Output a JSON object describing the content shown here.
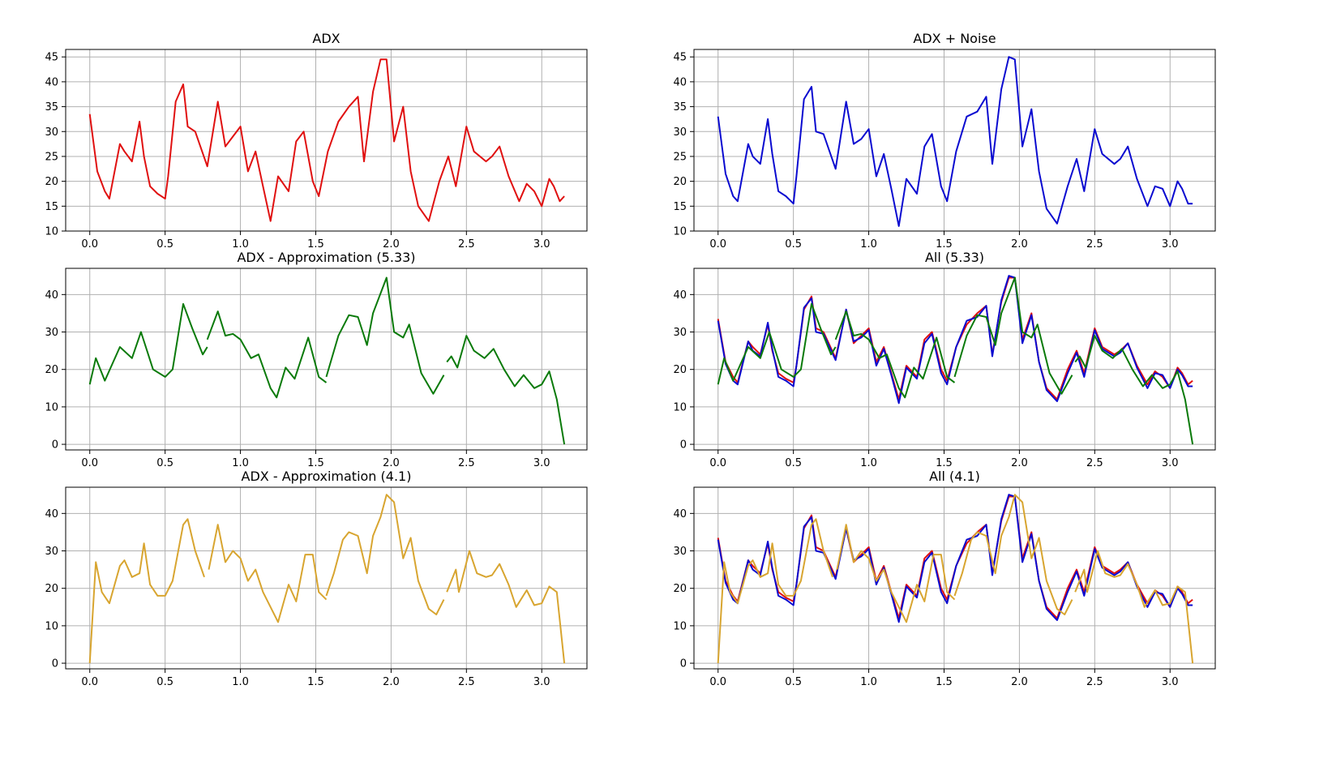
{
  "colors": {
    "adx": "#e01010",
    "noise": "#0a0ad0",
    "approx": "#0a7a0a",
    "approx41": "#d8a530",
    "grid": "#b0b0b0",
    "frame": "#000000"
  },
  "chart_data": [
    {
      "type": "line",
      "title": "ADX",
      "xlim": [
        -0.16,
        3.3
      ],
      "ylim": [
        10,
        46.5
      ],
      "xticks": [
        0.0,
        0.5,
        1.0,
        1.5,
        2.0,
        2.5,
        3.0
      ],
      "xtick_labels": [
        "0.0",
        "0.5",
        "1.0",
        "1.5",
        "2.0",
        "2.5",
        "3.0"
      ],
      "yticks": [
        10,
        15,
        20,
        25,
        30,
        35,
        40,
        45
      ],
      "ytick_labels": [
        "10",
        "15",
        "20",
        "25",
        "30",
        "35",
        "40",
        "45"
      ],
      "grid": true,
      "series": [
        {
          "color_key": "adx",
          "x": [
            0.0,
            0.05,
            0.1,
            0.13,
            0.2,
            0.23,
            0.28,
            0.33,
            0.36,
            0.4,
            0.45,
            0.5,
            0.52,
            0.57,
            0.62,
            0.65,
            0.7,
            0.78,
            0.85,
            0.9,
            0.95,
            1.0,
            1.05,
            1.1,
            1.15,
            1.2,
            1.25,
            1.32,
            1.37,
            1.42,
            1.48,
            1.52,
            1.58,
            1.65,
            1.72,
            1.78,
            1.82,
            1.88,
            1.93,
            1.97,
            2.02,
            2.08,
            2.13,
            2.18,
            2.25,
            2.32,
            2.38,
            2.43,
            2.5,
            2.55,
            2.63,
            2.67,
            2.72,
            2.78,
            2.85,
            2.9,
            2.95,
            3.0,
            3.05,
            3.08,
            3.12,
            3.15
          ],
          "y": [
            33.5,
            22,
            18,
            16.5,
            27.5,
            26,
            24,
            32,
            25,
            19,
            17.5,
            16.5,
            21,
            36,
            39.5,
            31,
            30,
            23,
            36,
            27,
            29,
            31,
            22,
            26,
            19,
            12,
            21,
            18,
            28,
            30,
            20,
            17,
            26,
            32,
            35,
            37,
            24,
            38,
            44.5,
            44.5,
            28,
            35,
            22,
            15,
            12,
            20,
            25,
            19,
            31,
            26,
            24,
            25,
            27,
            21,
            16,
            19.5,
            18,
            15,
            20.5,
            19,
            16,
            17
          ]
        }
      ]
    },
    {
      "type": "line",
      "title": "ADX + Noise",
      "xlim": [
        -0.16,
        3.3
      ],
      "ylim": [
        10,
        46.5
      ],
      "xticks": [
        0.0,
        0.5,
        1.0,
        1.5,
        2.0,
        2.5,
        3.0
      ],
      "xtick_labels": [
        "0.0",
        "0.5",
        "1.0",
        "1.5",
        "2.0",
        "2.5",
        "3.0"
      ],
      "yticks": [
        10,
        15,
        20,
        25,
        30,
        35,
        40,
        45
      ],
      "ytick_labels": [
        "10",
        "15",
        "20",
        "25",
        "30",
        "35",
        "40",
        "45"
      ],
      "grid": true,
      "series": [
        {
          "color_key": "noise",
          "x": [
            0.0,
            0.05,
            0.1,
            0.13,
            0.2,
            0.23,
            0.28,
            0.33,
            0.36,
            0.4,
            0.45,
            0.5,
            0.52,
            0.57,
            0.62,
            0.65,
            0.7,
            0.78,
            0.85,
            0.9,
            0.95,
            1.0,
            1.05,
            1.1,
            1.15,
            1.2,
            1.25,
            1.32,
            1.37,
            1.42,
            1.48,
            1.52,
            1.58,
            1.65,
            1.72,
            1.78,
            1.82,
            1.88,
            1.93,
            1.97,
            2.02,
            2.08,
            2.13,
            2.18,
            2.25,
            2.32,
            2.38,
            2.43,
            2.5,
            2.55,
            2.63,
            2.67,
            2.72,
            2.78,
            2.85,
            2.9,
            2.95,
            3.0,
            3.05,
            3.08,
            3.12,
            3.15
          ],
          "y": [
            33,
            21.5,
            17,
            16,
            27.5,
            25,
            23.5,
            32.5,
            25.5,
            18,
            17,
            15.5,
            21,
            36.5,
            39,
            30,
            29.5,
            22.5,
            36,
            27.5,
            28.5,
            30.5,
            21,
            25.5,
            18.5,
            11,
            20.5,
            17.5,
            27,
            29.5,
            19,
            16,
            26,
            33,
            34,
            37,
            23.5,
            38.5,
            45,
            44.5,
            27,
            34.5,
            22,
            14.5,
            11.5,
            19,
            24.5,
            18,
            30.5,
            25.5,
            23.5,
            24.5,
            27,
            20.5,
            15,
            19,
            18.5,
            15,
            20,
            18.5,
            15.5,
            15.5
          ]
        }
      ]
    },
    {
      "type": "line",
      "title": "ADX - Approximation (5.33)",
      "xlim": [
        -0.16,
        3.3
      ],
      "ylim": [
        -1.5,
        47
      ],
      "xticks": [
        0.0,
        0.5,
        1.0,
        1.5,
        2.0,
        2.5,
        3.0
      ],
      "xtick_labels": [
        "0.0",
        "0.5",
        "1.0",
        "1.5",
        "2.0",
        "2.5",
        "3.0"
      ],
      "yticks": [
        0,
        10,
        20,
        30,
        40
      ],
      "ytick_labels": [
        "0",
        "10",
        "20",
        "30",
        "40"
      ],
      "grid": true,
      "series": [
        {
          "color_key": "approx",
          "segments": [
            {
              "x": [
                0.0,
                0.04,
                0.1,
                0.2,
                0.28,
                0.34,
                0.42,
                0.5,
                0.55,
                0.62,
                0.68,
                0.75,
                0.78
              ],
              "y": [
                16,
                23,
                17,
                26,
                23,
                30,
                20,
                18,
                20,
                37.5,
                31,
                24,
                26
              ]
            },
            {
              "x": [
                0.78,
                0.85,
                0.9,
                0.95,
                1.0,
                1.07,
                1.12,
                1.2,
                1.24,
                1.3,
                1.36,
                1.45,
                1.52,
                1.57
              ],
              "y": [
                28,
                35.5,
                29,
                29.5,
                28,
                23,
                24,
                15,
                12.5,
                20.5,
                17.5,
                28.5,
                18,
                16.5
              ]
            },
            {
              "x": [
                1.57,
                1.65,
                1.72,
                1.78,
                1.84,
                1.88,
                1.97,
                2.02,
                2.08,
                2.12,
                2.2,
                2.28,
                2.35
              ],
              "y": [
                18,
                29,
                34.5,
                34,
                26.5,
                35,
                44.5,
                30,
                28.5,
                32,
                19,
                13.5,
                18.5
              ]
            },
            {
              "x": [
                2.37,
                2.4,
                2.44,
                2.5,
                2.55,
                2.62,
                2.68,
                2.75,
                2.82,
                2.88,
                2.95,
                3.0,
                3.05,
                3.1,
                3.15
              ],
              "y": [
                22,
                23.5,
                20.5,
                29,
                25,
                23,
                25.5,
                20,
                15.5,
                18.5,
                15,
                16,
                19.5,
                12,
                0
              ]
            }
          ]
        }
      ]
    },
    {
      "type": "line",
      "title": "All (5.33)",
      "xlim": [
        -0.16,
        3.3
      ],
      "ylim": [
        -1.5,
        47
      ],
      "xticks": [
        0.0,
        0.5,
        1.0,
        1.5,
        2.0,
        2.5,
        3.0
      ],
      "xtick_labels": [
        "0.0",
        "0.5",
        "1.0",
        "1.5",
        "2.0",
        "2.5",
        "3.0"
      ],
      "yticks": [
        0,
        10,
        20,
        30,
        40
      ],
      "ytick_labels": [
        "0",
        "10",
        "20",
        "30",
        "40"
      ],
      "grid": true,
      "series": [
        {
          "color_key": "adx",
          "ref": "adx"
        },
        {
          "color_key": "noise",
          "ref": "noise"
        },
        {
          "color_key": "approx",
          "ref": "approx533"
        }
      ]
    },
    {
      "type": "line",
      "title": "ADX - Approximation (4.1)",
      "xlim": [
        -0.16,
        3.3
      ],
      "ylim": [
        -1.5,
        47
      ],
      "xticks": [
        0.0,
        0.5,
        1.0,
        1.5,
        2.0,
        2.5,
        3.0
      ],
      "xtick_labels": [
        "0.0",
        "0.5",
        "1.0",
        "1.5",
        "2.0",
        "2.5",
        "3.0"
      ],
      "yticks": [
        0,
        10,
        20,
        30,
        40
      ],
      "ytick_labels": [
        "0",
        "10",
        "20",
        "30",
        "40"
      ],
      "grid": true,
      "series": [
        {
          "color_key": "approx41",
          "segments": [
            {
              "x": [
                0.0,
                0.04,
                0.08,
                0.13,
                0.2,
                0.23,
                0.28,
                0.33,
                0.36,
                0.4,
                0.45,
                0.5,
                0.55,
                0.62,
                0.65,
                0.7,
                0.76
              ],
              "y": [
                0,
                27,
                19,
                16,
                26,
                27.5,
                23,
                24,
                32,
                21,
                18,
                18,
                22,
                37,
                38.5,
                30,
                23
              ]
            },
            {
              "x": [
                0.79,
                0.85,
                0.9,
                0.95,
                1.0,
                1.05,
                1.1,
                1.15,
                1.2,
                1.25,
                1.32,
                1.37,
                1.43,
                1.48,
                1.52,
                1.57
              ],
              "y": [
                25,
                37,
                27,
                30,
                28,
                22,
                25,
                19,
                15,
                11,
                21,
                16.5,
                29,
                29,
                19,
                17
              ]
            },
            {
              "x": [
                1.57,
                1.62,
                1.68,
                1.72,
                1.78,
                1.84,
                1.88,
                1.93,
                1.97,
                2.02,
                2.08,
                2.13,
                2.18,
                2.25,
                2.3,
                2.35
              ],
              "y": [
                18,
                24,
                33,
                35,
                34,
                24,
                34,
                39,
                45,
                43,
                28,
                33.5,
                22,
                14.5,
                13,
                17
              ]
            },
            {
              "x": [
                2.37,
                2.43,
                2.45,
                2.52,
                2.57,
                2.63,
                2.67,
                2.72,
                2.78,
                2.83,
                2.9,
                2.95,
                3.0,
                3.05,
                3.1,
                3.15
              ],
              "y": [
                19,
                25,
                19,
                30,
                24,
                23,
                23.5,
                26.5,
                21,
                15,
                19.5,
                15.5,
                16,
                20.5,
                19,
                0
              ]
            }
          ]
        }
      ]
    },
    {
      "type": "line",
      "title": "All (4.1)",
      "xlim": [
        -0.16,
        3.3
      ],
      "ylim": [
        -1.5,
        47
      ],
      "xticks": [
        0.0,
        0.5,
        1.0,
        1.5,
        2.0,
        2.5,
        3.0
      ],
      "xtick_labels": [
        "0.0",
        "0.5",
        "1.0",
        "1.5",
        "2.0",
        "2.5",
        "3.0"
      ],
      "yticks": [
        0,
        10,
        20,
        30,
        40
      ],
      "ytick_labels": [
        "0",
        "10",
        "20",
        "30",
        "40"
      ],
      "grid": true,
      "series": [
        {
          "color_key": "adx",
          "ref": "adx"
        },
        {
          "color_key": "noise",
          "ref": "noise"
        },
        {
          "color_key": "approx41",
          "ref": "approx41"
        }
      ]
    }
  ]
}
